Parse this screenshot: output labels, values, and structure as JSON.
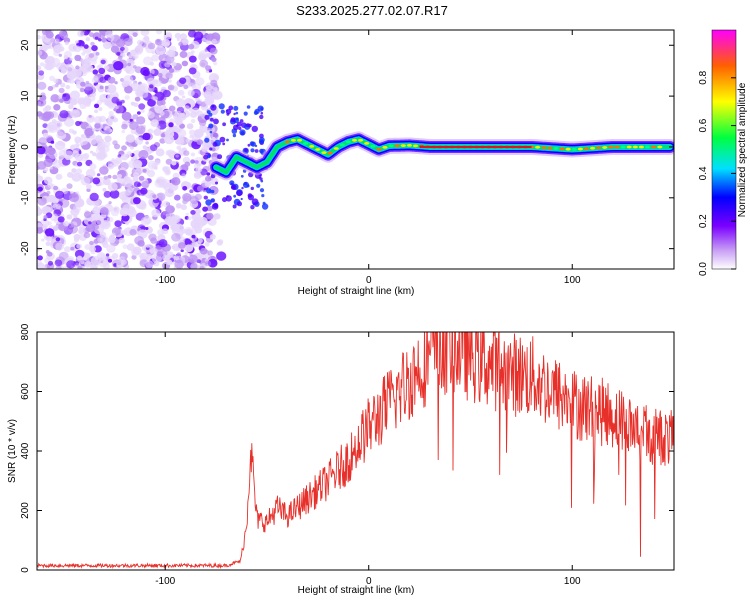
{
  "title": "S233.2025.277.02.07.R17",
  "chart_data": [
    {
      "type": "heatmap",
      "xlabel": "Height of straight line (km)",
      "ylabel": "Frequency (Hz)",
      "xlim": [
        -163,
        150
      ],
      "ylim": [
        -24,
        23
      ],
      "xticks": [
        -100,
        0,
        100
      ],
      "yticks": [
        -20,
        -10,
        0,
        10,
        20
      ],
      "ridge": {
        "x": [
          -75,
          -70,
          -65,
          -60,
          -55,
          -50,
          -45,
          -40,
          -35,
          -30,
          -25,
          -20,
          -15,
          -10,
          -5,
          0,
          5,
          10,
          20,
          30,
          40,
          60,
          80,
          100,
          120,
          148
        ],
        "y": [
          -4,
          -5,
          -2,
          -3,
          -4,
          -3,
          0,
          1,
          1.5,
          0.5,
          -0.5,
          -1.5,
          0,
          1,
          1.5,
          0.5,
          -0.5,
          0.2,
          0.3,
          0,
          0,
          0,
          0,
          -0.5,
          0,
          0
        ]
      },
      "colorbar": {
        "label": "Normalized spectral amplitude",
        "ticks": [
          0.0,
          0.2,
          0.4,
          0.6,
          0.8
        ],
        "range": [
          0,
          1
        ]
      }
    },
    {
      "type": "line",
      "xlabel": "Height of straight line (km)",
      "ylabel": "SNR (10 * v/v)",
      "xlim": [
        -163,
        150
      ],
      "ylim": [
        0,
        800
      ],
      "xticks": [
        -100,
        0,
        100
      ],
      "yticks": [
        0,
        200,
        400,
        600,
        800
      ],
      "color": "#e8302a",
      "envelope": {
        "x": [
          -163,
          -70,
          -63,
          -60,
          -58,
          -55,
          -50,
          -45,
          -40,
          -30,
          -20,
          -10,
          0,
          10,
          20,
          30,
          40,
          50,
          60,
          70,
          80,
          90,
          100,
          110,
          120,
          130,
          140,
          150
        ],
        "y": [
          15,
          15,
          30,
          150,
          420,
          170,
          160,
          210,
          180,
          240,
          300,
          370,
          480,
          560,
          640,
          720,
          760,
          720,
          690,
          660,
          650,
          600,
          560,
          540,
          520,
          480,
          450,
          440
        ]
      }
    }
  ]
}
